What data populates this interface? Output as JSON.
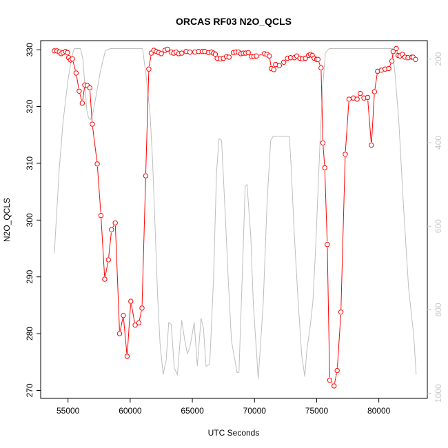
{
  "chart_data": {
    "type": "line",
    "title": "ORCAS RF03 N2O_QCLS",
    "xlabel": "UTC Seconds",
    "ylabel": "N2O_QCLS",
    "xlim": [
      52800,
      83900
    ],
    "ylim": [
      268.6,
      331.6
    ],
    "x_ticks": [
      55000,
      60000,
      65000,
      70000,
      75000,
      80000
    ],
    "y_ticks": [
      270,
      280,
      290,
      300,
      310,
      320,
      330
    ],
    "y2lim": [
      1012,
      156
    ],
    "y2_ticks": [
      200,
      400,
      600,
      800,
      1000
    ],
    "grid": false,
    "colors": {
      "series": "#ff0000",
      "secondary": "#bebebe"
    },
    "series": [
      {
        "values": [
          [
            53900,
            329.8
          ],
          [
            54100,
            329.8
          ],
          [
            54300,
            329.6
          ],
          [
            54450,
            329.3
          ],
          [
            54600,
            329.5
          ],
          [
            54800,
            329.7
          ],
          [
            54950,
            329.5
          ],
          [
            55050,
            328.6
          ],
          [
            55200,
            328.2
          ],
          [
            55350,
            328.4
          ],
          [
            55650,
            325.9
          ],
          [
            55900,
            322.7
          ],
          [
            56150,
            320.6
          ],
          [
            56350,
            323.8
          ],
          [
            56550,
            323.7
          ],
          [
            56750,
            323.3
          ],
          [
            56950,
            316.9
          ],
          [
            57350,
            309.9
          ],
          [
            57650,
            300.8
          ],
          [
            57950,
            289.6
          ],
          [
            58250,
            293.0
          ],
          [
            58500,
            298.3
          ],
          [
            58800,
            299.5
          ],
          [
            59150,
            280.0
          ],
          [
            59450,
            283.2
          ],
          [
            59750,
            276.0
          ],
          [
            60050,
            285.7
          ],
          [
            60400,
            281.5
          ],
          [
            60700,
            281.9
          ],
          [
            60950,
            284.5
          ],
          [
            61250,
            307.8
          ],
          [
            61500,
            326.6
          ],
          [
            61700,
            329.4
          ],
          [
            61900,
            329.9
          ],
          [
            62100,
            329.7
          ],
          [
            62300,
            329.5
          ],
          [
            62500,
            329.3
          ],
          [
            62800,
            329.9
          ],
          [
            63000,
            330.1
          ],
          [
            63300,
            329.6
          ],
          [
            63500,
            329.4
          ],
          [
            63700,
            329.6
          ],
          [
            63900,
            329.3
          ],
          [
            64150,
            329.4
          ],
          [
            64500,
            329.7
          ],
          [
            64800,
            329.6
          ],
          [
            65200,
            329.6
          ],
          [
            65500,
            329.7
          ],
          [
            65800,
            329.7
          ],
          [
            66000,
            329.7
          ],
          [
            66300,
            329.5
          ],
          [
            66550,
            329.6
          ],
          [
            66700,
            329.4
          ],
          [
            66850,
            329.2
          ],
          [
            67000,
            328.5
          ],
          [
            67250,
            328.4
          ],
          [
            67500,
            328.5
          ],
          [
            67750,
            328.8
          ],
          [
            67950,
            328.7
          ],
          [
            68300,
            329.5
          ],
          [
            68500,
            329.6
          ],
          [
            68700,
            329.6
          ],
          [
            68900,
            329.3
          ],
          [
            69100,
            329.4
          ],
          [
            69300,
            329.4
          ],
          [
            69500,
            329.5
          ],
          [
            69750,
            328.8
          ],
          [
            69950,
            328.8
          ],
          [
            70150,
            328.9
          ],
          [
            70800,
            329.3
          ],
          [
            71000,
            329.2
          ],
          [
            71200,
            328.9
          ],
          [
            71350,
            326.7
          ],
          [
            71550,
            326.5
          ],
          [
            71700,
            327.4
          ],
          [
            72000,
            327.2
          ],
          [
            72350,
            327.8
          ],
          [
            72650,
            328.5
          ],
          [
            72900,
            328.6
          ],
          [
            73200,
            328.6
          ],
          [
            73400,
            328.9
          ],
          [
            73650,
            328.5
          ],
          [
            73850,
            328.4
          ],
          [
            74100,
            328.5
          ],
          [
            74350,
            329.0
          ],
          [
            74500,
            329.2
          ],
          [
            74650,
            329.0
          ],
          [
            74800,
            328.5
          ],
          [
            75000,
            328.3
          ],
          [
            75100,
            328.3
          ],
          [
            75350,
            326.8
          ],
          [
            75500,
            313.6
          ],
          [
            75650,
            309.2
          ],
          [
            75850,
            295.7
          ],
          [
            76050,
            271.8
          ],
          [
            76400,
            270.8
          ],
          [
            76650,
            273.5
          ],
          [
            76950,
            283.8
          ],
          [
            77300,
            311.6
          ],
          [
            77600,
            321.3
          ],
          [
            77950,
            321.5
          ],
          [
            78250,
            321.3
          ],
          [
            78500,
            322.3
          ],
          [
            78800,
            321.5
          ],
          [
            79100,
            321.6
          ],
          [
            79400,
            313.2
          ],
          [
            79650,
            322.6
          ],
          [
            79900,
            326.2
          ],
          [
            80200,
            326.4
          ],
          [
            80500,
            326.6
          ],
          [
            80800,
            326.7
          ],
          [
            81050,
            328.0
          ],
          [
            81150,
            329.7
          ],
          [
            81400,
            330.2
          ],
          [
            81550,
            329.0
          ],
          [
            81700,
            328.9
          ],
          [
            81900,
            329.2
          ],
          [
            82100,
            328.7
          ],
          [
            82350,
            328.6
          ],
          [
            82650,
            328.7
          ],
          [
            82750,
            328.7
          ],
          [
            82950,
            328.3
          ]
        ]
      },
      {
        "axis": "right",
        "values": [
          [
            53900,
            665
          ],
          [
            54300,
            460
          ],
          [
            54600,
            350
          ],
          [
            55000,
            250
          ],
          [
            55300,
            195
          ],
          [
            55500,
            175
          ],
          [
            56000,
            175
          ],
          [
            56200,
            200
          ],
          [
            56500,
            320
          ],
          [
            56650,
            340
          ],
          [
            56800,
            345
          ],
          [
            57000,
            330
          ],
          [
            57300,
            280
          ],
          [
            57600,
            230
          ],
          [
            58000,
            180
          ],
          [
            58400,
            175
          ],
          [
            61000,
            175
          ],
          [
            61300,
            245
          ],
          [
            61600,
            330
          ],
          [
            61800,
            440
          ],
          [
            62000,
            600
          ],
          [
            62200,
            765
          ],
          [
            62400,
            880
          ],
          [
            62650,
            955
          ],
          [
            62900,
            920
          ],
          [
            63100,
            830
          ],
          [
            63300,
            835
          ],
          [
            63550,
            940
          ],
          [
            63800,
            955
          ],
          [
            64150,
            825
          ],
          [
            64400,
            875
          ],
          [
            64600,
            905
          ],
          [
            64800,
            890
          ],
          [
            65150,
            830
          ],
          [
            65400,
            935
          ],
          [
            65700,
            820
          ],
          [
            65900,
            845
          ],
          [
            66100,
            935
          ],
          [
            66400,
            930
          ],
          [
            66700,
            730
          ],
          [
            66950,
            470
          ],
          [
            67150,
            390
          ],
          [
            67350,
            395
          ],
          [
            67650,
            575
          ],
          [
            67900,
            735
          ],
          [
            68150,
            875
          ],
          [
            68600,
            950
          ],
          [
            68750,
            950
          ],
          [
            69100,
            645
          ],
          [
            69250,
            505
          ],
          [
            69400,
            500
          ],
          [
            69700,
            625
          ],
          [
            69900,
            785
          ],
          [
            70300,
            965
          ],
          [
            70700,
            785
          ],
          [
            71000,
            550
          ],
          [
            71300,
            395
          ],
          [
            71500,
            385
          ],
          [
            72800,
            385
          ],
          [
            72950,
            460
          ],
          [
            73200,
            620
          ],
          [
            73500,
            775
          ],
          [
            73800,
            910
          ],
          [
            74050,
            960
          ],
          [
            74200,
            900
          ],
          [
            74500,
            835
          ],
          [
            74700,
            780
          ],
          [
            74900,
            660
          ],
          [
            75100,
            520
          ],
          [
            75300,
            375
          ],
          [
            75500,
            260
          ],
          [
            75700,
            185
          ],
          [
            76000,
            175
          ],
          [
            81100,
            175
          ],
          [
            81300,
            235
          ],
          [
            81600,
            345
          ],
          [
            82000,
            560
          ],
          [
            82400,
            750
          ],
          [
            82800,
            860
          ],
          [
            83000,
            955
          ]
        ]
      }
    ]
  }
}
